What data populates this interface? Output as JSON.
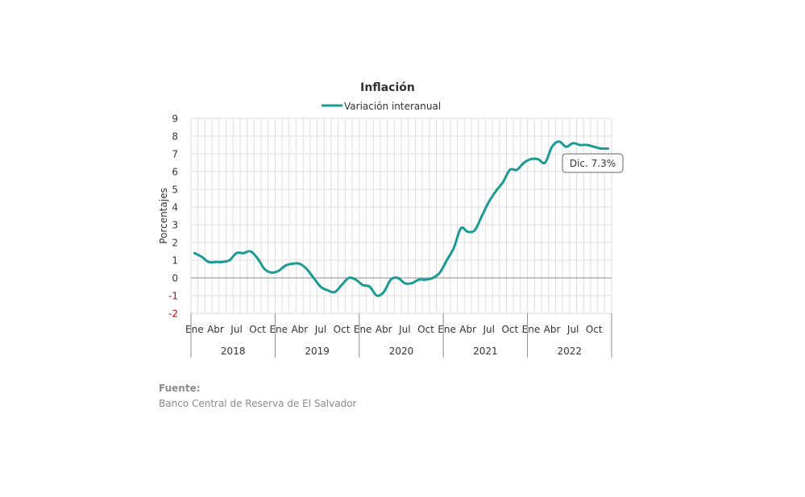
{
  "chart_data": {
    "type": "line",
    "title": "Inflación",
    "ylabel": "Porcentajes",
    "ylim": [
      -2,
      9
    ],
    "yticks": [
      -2,
      -1,
      0,
      1,
      2,
      3,
      4,
      5,
      6,
      7,
      8,
      9
    ],
    "grid": true,
    "legend_position": "top-center",
    "x_month_labels": [
      "Ene",
      "Abr",
      "Jul",
      "Oct"
    ],
    "years": [
      "2018",
      "2019",
      "2020",
      "2021",
      "2022"
    ],
    "series": [
      {
        "name": "Variación interanual",
        "color": "#1a9a94",
        "x": [
          "2018-01",
          "2018-02",
          "2018-03",
          "2018-04",
          "2018-05",
          "2018-06",
          "2018-07",
          "2018-08",
          "2018-09",
          "2018-10",
          "2018-11",
          "2018-12",
          "2019-01",
          "2019-02",
          "2019-03",
          "2019-04",
          "2019-05",
          "2019-06",
          "2019-07",
          "2019-08",
          "2019-09",
          "2019-10",
          "2019-11",
          "2019-12",
          "2020-01",
          "2020-02",
          "2020-03",
          "2020-04",
          "2020-05",
          "2020-06",
          "2020-07",
          "2020-08",
          "2020-09",
          "2020-10",
          "2020-11",
          "2020-12",
          "2021-01",
          "2021-02",
          "2021-03",
          "2021-04",
          "2021-05",
          "2021-06",
          "2021-07",
          "2021-08",
          "2021-09",
          "2021-10",
          "2021-11",
          "2021-12",
          "2022-01",
          "2022-02",
          "2022-03",
          "2022-04",
          "2022-05",
          "2022-06",
          "2022-07",
          "2022-08",
          "2022-09",
          "2022-10",
          "2022-11",
          "2022-12"
        ],
        "values": [
          1.4,
          1.2,
          0.9,
          0.9,
          0.9,
          1.0,
          1.4,
          1.4,
          1.5,
          1.1,
          0.5,
          0.3,
          0.4,
          0.7,
          0.8,
          0.8,
          0.5,
          0.0,
          -0.5,
          -0.7,
          -0.8,
          -0.4,
          0.0,
          -0.1,
          -0.4,
          -0.5,
          -1.0,
          -0.8,
          -0.1,
          0.0,
          -0.3,
          -0.3,
          -0.1,
          -0.1,
          0.0,
          0.3,
          1.0,
          1.7,
          2.8,
          2.6,
          2.7,
          3.5,
          4.3,
          4.9,
          5.4,
          6.1,
          6.1,
          6.5,
          6.7,
          6.7,
          6.5,
          7.4,
          7.7,
          7.4,
          7.6,
          7.5,
          7.5,
          7.4,
          7.3,
          7.3
        ]
      }
    ],
    "annotations": [
      {
        "text": "Dic. 7.3%"
      }
    ]
  },
  "footer": {
    "source_label": "Fuente:",
    "source_text": "Banco Central de Reserva de El Salvador"
  }
}
